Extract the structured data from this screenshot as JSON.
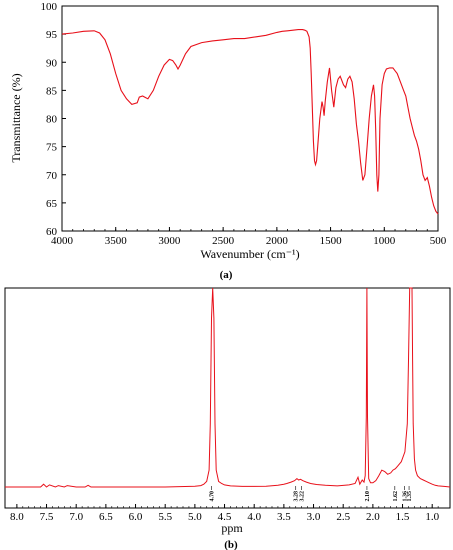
{
  "chart_data": [
    {
      "type": "line",
      "panel_label": "(a)",
      "xlabel": "Wavenumber (cm⁻¹)",
      "ylabel": "Transmittance (%)",
      "xlim": [
        4000,
        500
      ],
      "ylim": [
        60,
        100
      ],
      "x_ticks": [
        "4000",
        "3500",
        "3000",
        "2500",
        "2000",
        "1500",
        "1000",
        "500"
      ],
      "y_ticks": [
        "60",
        "65",
        "70",
        "75",
        "80",
        "85",
        "90",
        "95",
        "100"
      ],
      "line_color": "#e8101a",
      "series": [
        {
          "x": [
            4000,
            3900,
            3800,
            3700,
            3650,
            3600,
            3550,
            3500,
            3450,
            3400,
            3350,
            3300,
            3280,
            3250,
            3230,
            3200,
            3150,
            3100,
            3050,
            3000,
            2970,
            2940,
            2920,
            2900,
            2850,
            2800,
            2700,
            2600,
            2500,
            2400,
            2300,
            2200,
            2100,
            2000,
            1950,
            1900,
            1850,
            1800,
            1760,
            1740,
            1720,
            1700,
            1690,
            1680,
            1670,
            1660,
            1650,
            1640,
            1630,
            1620,
            1600,
            1580,
            1570,
            1560,
            1550,
            1530,
            1510,
            1490,
            1470,
            1450,
            1430,
            1410,
            1380,
            1360,
            1340,
            1320,
            1300,
            1280,
            1260,
            1240,
            1220,
            1200,
            1180,
            1160,
            1140,
            1120,
            1100,
            1090,
            1080,
            1070,
            1060,
            1050,
            1040,
            1020,
            1000,
            980,
            950,
            920,
            900,
            880,
            850,
            820,
            800,
            780,
            760,
            740,
            720,
            700,
            680,
            660,
            640,
            620,
            600,
            580,
            560,
            540,
            520,
            500
          ],
          "y": [
            95.0,
            95.2,
            95.5,
            95.6,
            95.2,
            94.0,
            91.5,
            88.0,
            85.0,
            83.5,
            82.5,
            82.8,
            83.8,
            84.0,
            83.8,
            83.5,
            85.0,
            87.5,
            89.5,
            90.5,
            90.3,
            89.5,
            88.8,
            89.5,
            91.5,
            92.8,
            93.5,
            93.8,
            94.0,
            94.2,
            94.2,
            94.5,
            94.8,
            95.3,
            95.5,
            95.6,
            95.7,
            95.8,
            95.8,
            95.7,
            95.5,
            94.5,
            92.5,
            88.0,
            82.0,
            76.0,
            72.5,
            71.8,
            72.5,
            75.0,
            80.0,
            83.0,
            82.0,
            80.5,
            83.0,
            86.5,
            89.0,
            85.0,
            82.0,
            85.5,
            87.0,
            87.5,
            86.0,
            85.5,
            87.0,
            87.5,
            86.5,
            83.5,
            79.0,
            76.0,
            72.0,
            69.0,
            70.0,
            75.0,
            80.0,
            84.0,
            86.0,
            84.0,
            78.0,
            70.0,
            67.0,
            70.0,
            80.0,
            86.0,
            88.0,
            88.8,
            89.0,
            89.0,
            88.5,
            88.0,
            86.5,
            85.0,
            84.0,
            82.0,
            80.0,
            78.5,
            77.0,
            76.0,
            74.5,
            72.5,
            70.0,
            69.0,
            69.5,
            68.0,
            66.0,
            64.5,
            63.5,
            63.0
          ]
        }
      ]
    },
    {
      "type": "line",
      "panel_label": "(b)",
      "xlabel": "ppm",
      "ylabel": "",
      "xlim": [
        8.2,
        0.7
      ],
      "x_ticks": [
        "8.0",
        "7.5",
        "7.0",
        "6.5",
        "6.0",
        "5.5",
        "5.0",
        "4.5",
        "4.0",
        "3.5",
        "3.0",
        "2.5",
        "2.0",
        "1.5",
        "1.0"
      ],
      "line_color": "#e8101a",
      "peak_labels": [
        "4.70",
        "3.28",
        "3.22",
        "2.10",
        "1.62",
        "1.36",
        "1.35"
      ],
      "series": [
        {
          "x": [
            8.2,
            7.6,
            7.55,
            7.5,
            7.45,
            7.35,
            7.3,
            7.2,
            7.15,
            7.0,
            6.85,
            6.8,
            6.75,
            6.5,
            6.0,
            5.5,
            5.0,
            4.9,
            4.85,
            4.8,
            4.76,
            4.74,
            4.72,
            4.7,
            4.68,
            4.66,
            4.64,
            4.6,
            4.55,
            4.5,
            4.4,
            4.2,
            4.0,
            3.8,
            3.6,
            3.5,
            3.45,
            3.38,
            3.32,
            3.28,
            3.25,
            3.22,
            3.18,
            3.12,
            3.05,
            2.95,
            2.8,
            2.6,
            2.4,
            2.3,
            2.25,
            2.22,
            2.2,
            2.18,
            2.15,
            2.13,
            2.11,
            2.1,
            2.09,
            2.07,
            2.04,
            2.0,
            1.95,
            1.9,
            1.85,
            1.8,
            1.75,
            1.7,
            1.66,
            1.62,
            1.58,
            1.52,
            1.46,
            1.42,
            1.4,
            1.38,
            1.37,
            1.36,
            1.35,
            1.34,
            1.33,
            1.32,
            1.3,
            1.28,
            1.25,
            1.2,
            1.15,
            1.1,
            1.05,
            1.0,
            0.95,
            0.9,
            0.8,
            0.7
          ],
          "y": [
            0.0,
            0.0,
            0.02,
            0.0,
            0.015,
            0.0,
            0.01,
            0.0,
            0.01,
            0.0,
            0.0,
            0.012,
            0.0,
            0.0,
            0.0,
            0.0,
            0.005,
            0.01,
            0.02,
            0.04,
            0.12,
            0.45,
            1.2,
            1.5,
            1.2,
            0.45,
            0.12,
            0.04,
            0.025,
            0.015,
            0.008,
            0.004,
            0.004,
            0.006,
            0.012,
            0.02,
            0.025,
            0.035,
            0.045,
            0.06,
            0.05,
            0.055,
            0.045,
            0.035,
            0.025,
            0.018,
            0.012,
            0.008,
            0.015,
            0.025,
            0.07,
            0.02,
            0.035,
            0.05,
            0.035,
            0.08,
            0.5,
            1.5,
            0.5,
            0.06,
            0.03,
            0.03,
            0.045,
            0.08,
            0.12,
            0.11,
            0.09,
            0.1,
            0.12,
            0.13,
            0.15,
            0.18,
            0.25,
            0.45,
            0.9,
            1.5,
            1.5,
            1.5,
            1.5,
            1.5,
            0.9,
            0.45,
            0.2,
            0.12,
            0.08,
            0.06,
            0.05,
            0.04,
            0.03,
            0.02,
            0.012,
            0.008,
            0.004,
            0.0
          ]
        }
      ]
    }
  ]
}
